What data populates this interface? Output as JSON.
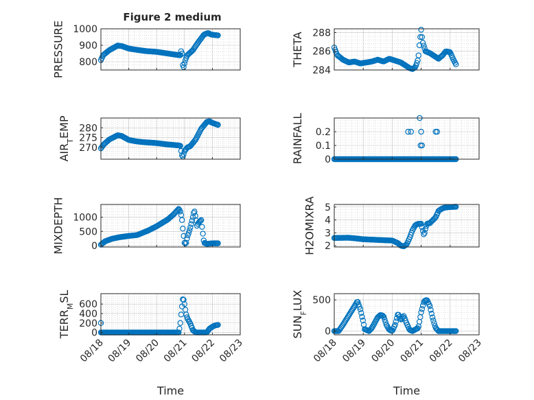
{
  "title": "Figure 2 medium",
  "colors": {
    "marker": "#0072BD",
    "axis": "#262626",
    "grid": "#bfbfbf",
    "background": "#ffffff"
  },
  "chart_data": [
    {
      "type": "scatter",
      "ylabel": "PRESSURE",
      "title": "Figure 2 medium",
      "ylim": [
        750,
        1000
      ],
      "yticks": [
        800,
        900,
        1000
      ],
      "xlim": [
        0,
        5
      ],
      "xticks": [
        0,
        1,
        2,
        3,
        4,
        5
      ],
      "xticklabels": [
        "",
        "",
        "",
        "",
        "",
        ""
      ],
      "xlabel": "",
      "grid": true,
      "series": [
        {
          "type": "piecewise",
          "knots": [
            [
              0.0,
              810
            ],
            [
              0.08,
              840
            ],
            [
              0.3,
              870
            ],
            [
              0.6,
              898
            ],
            [
              0.75,
              895
            ],
            [
              1.0,
              880
            ],
            [
              1.3,
              872
            ],
            [
              1.6,
              865
            ],
            [
              2.0,
              860
            ],
            [
              2.4,
              850
            ],
            [
              2.8,
              840
            ],
            [
              2.85,
              840
            ],
            [
              2.9,
              880
            ],
            [
              2.93,
              790
            ],
            [
              2.96,
              760
            ],
            [
              3.0,
              790
            ],
            [
              3.05,
              820
            ],
            [
              3.1,
              840
            ],
            [
              3.3,
              870
            ],
            [
              3.5,
              920
            ],
            [
              3.7,
              965
            ],
            [
              3.85,
              975
            ],
            [
              3.95,
              965
            ],
            [
              4.2,
              960
            ]
          ]
        }
      ]
    },
    {
      "type": "scatter",
      "ylabel": "THETA",
      "ylim": [
        284,
        288.4
      ],
      "yticks": [
        284,
        286,
        288
      ],
      "xlim": [
        0,
        5
      ],
      "xticks": [
        0,
        1,
        2,
        3,
        4,
        5
      ],
      "xticklabels": [
        "",
        "",
        "",
        "",
        "",
        ""
      ],
      "xlabel": "",
      "grid": true,
      "series": [
        {
          "type": "piecewise",
          "knots": [
            [
              0.0,
              286.4
            ],
            [
              0.1,
              285.6
            ],
            [
              0.3,
              285.1
            ],
            [
              0.5,
              284.8
            ],
            [
              0.7,
              284.9
            ],
            [
              0.9,
              284.7
            ],
            [
              1.1,
              284.8
            ],
            [
              1.3,
              284.9
            ],
            [
              1.5,
              285.1
            ],
            [
              1.7,
              284.9
            ],
            [
              1.9,
              285.2
            ],
            [
              2.1,
              285.0
            ],
            [
              2.3,
              284.8
            ],
            [
              2.5,
              284.4
            ],
            [
              2.6,
              284.2
            ],
            [
              2.7,
              284.1
            ],
            [
              2.8,
              284.3
            ],
            [
              2.9,
              285.2
            ],
            [
              2.95,
              287.0
            ],
            [
              3.0,
              288.3
            ],
            [
              3.05,
              287.0
            ],
            [
              3.15,
              286.0
            ],
            [
              3.3,
              285.8
            ],
            [
              3.5,
              285.4
            ],
            [
              3.6,
              285.2
            ],
            [
              3.75,
              285.6
            ],
            [
              3.85,
              286.0
            ],
            [
              4.0,
              285.9
            ],
            [
              4.1,
              285.2
            ],
            [
              4.2,
              284.6
            ]
          ]
        }
      ]
    },
    {
      "type": "scatter",
      "ylabel": "AIR_TEMP",
      "ylim": [
        264,
        285
      ],
      "yticks": [
        270,
        275,
        280
      ],
      "xlim": [
        0,
        5
      ],
      "xticks": [
        0,
        1,
        2,
        3,
        4,
        5
      ],
      "xticklabels": [
        "",
        "",
        "",
        "",
        "",
        ""
      ],
      "xlabel": "",
      "grid": true,
      "series": [
        {
          "type": "piecewise",
          "knots": [
            [
              0.0,
              269.5
            ],
            [
              0.1,
              271.5
            ],
            [
              0.3,
              274
            ],
            [
              0.6,
              276.2
            ],
            [
              0.75,
              275.8
            ],
            [
              1.0,
              273.8
            ],
            [
              1.3,
              273.0
            ],
            [
              1.6,
              272.6
            ],
            [
              2.0,
              272.2
            ],
            [
              2.4,
              271.5
            ],
            [
              2.8,
              271.0
            ],
            [
              2.85,
              270.8
            ],
            [
              2.9,
              266.5
            ],
            [
              2.93,
              265.0
            ],
            [
              2.96,
              266.0
            ],
            [
              3.0,
              268.0
            ],
            [
              3.1,
              270.0
            ],
            [
              3.2,
              270.5
            ],
            [
              3.4,
              274
            ],
            [
              3.6,
              279.5
            ],
            [
              3.8,
              283.0
            ],
            [
              3.9,
              283.3
            ],
            [
              4.0,
              282.5
            ],
            [
              4.2,
              281.5
            ]
          ]
        }
      ]
    },
    {
      "type": "scatter",
      "ylabel": "RAINFALL",
      "ylim": [
        0,
        0.3
      ],
      "yticks": [
        0,
        0.1,
        0.2
      ],
      "xlim": [
        0,
        5
      ],
      "xticks": [
        0,
        1,
        2,
        3,
        4,
        5
      ],
      "xticklabels": [
        "",
        "",
        "",
        "",
        "",
        ""
      ],
      "xlabel": "",
      "grid": true,
      "series": [
        {
          "type": "piecewise",
          "knots": [
            [
              0.0,
              0
            ],
            [
              4.2,
              0
            ]
          ]
        },
        {
          "type": "points",
          "points": [
            [
              2.55,
              0.2
            ],
            [
              2.65,
              0.2
            ],
            [
              2.95,
              0.3
            ],
            [
              3.0,
              0.2
            ],
            [
              2.98,
              0.1
            ],
            [
              3.03,
              0.1
            ],
            [
              3.5,
              0.2
            ],
            [
              3.55,
              0.2
            ]
          ]
        }
      ]
    },
    {
      "type": "scatter",
      "ylabel": "MIXDEPTH",
      "ylim": [
        -50,
        1450
      ],
      "yticks": [
        0,
        500,
        1000
      ],
      "xlim": [
        0,
        5
      ],
      "xticks": [
        0,
        1,
        2,
        3,
        4,
        5
      ],
      "xticklabels": [
        "",
        "",
        "",
        "",
        "",
        ""
      ],
      "xlabel": "",
      "grid": true,
      "series": [
        {
          "type": "piecewise",
          "knots": [
            [
              0.0,
              30
            ],
            [
              0.15,
              150
            ],
            [
              0.4,
              240
            ],
            [
              0.7,
              300
            ],
            [
              1.0,
              340
            ],
            [
              1.3,
              370
            ],
            [
              1.5,
              450
            ],
            [
              1.7,
              530
            ],
            [
              2.0,
              680
            ],
            [
              2.2,
              800
            ],
            [
              2.4,
              920
            ],
            [
              2.6,
              1090
            ],
            [
              2.75,
              1250
            ],
            [
              2.8,
              1300
            ],
            [
              2.85,
              1200
            ],
            [
              2.9,
              1000
            ],
            [
              2.95,
              500
            ],
            [
              3.0,
              100
            ],
            [
              3.05,
              50
            ],
            [
              3.1,
              300
            ],
            [
              3.2,
              600
            ],
            [
              3.3,
              1000
            ],
            [
              3.35,
              1250
            ],
            [
              3.4,
              1000
            ],
            [
              3.45,
              700
            ],
            [
              3.5,
              800
            ],
            [
              3.6,
              900
            ],
            [
              3.7,
              100
            ],
            [
              3.8,
              60
            ],
            [
              4.0,
              80
            ],
            [
              4.2,
              80
            ]
          ]
        }
      ]
    },
    {
      "type": "scatter",
      "ylabel": "H2OMIXRA",
      "ylim": [
        1.9,
        5.2
      ],
      "yticks": [
        2,
        3,
        4,
        5
      ],
      "xlim": [
        0,
        5
      ],
      "xticks": [
        0,
        1,
        2,
        3,
        4,
        5
      ],
      "xticklabels": [
        "",
        "",
        "",
        "",
        "",
        ""
      ],
      "xlabel": "",
      "grid": true,
      "series": [
        {
          "type": "piecewise",
          "knots": [
            [
              0.0,
              2.6
            ],
            [
              0.5,
              2.62
            ],
            [
              0.8,
              2.55
            ],
            [
              1.0,
              2.5
            ],
            [
              1.5,
              2.45
            ],
            [
              2.0,
              2.4
            ],
            [
              2.2,
              2.2
            ],
            [
              2.3,
              2.0
            ],
            [
              2.4,
              1.95
            ],
            [
              2.5,
              2.1
            ],
            [
              2.6,
              2.6
            ],
            [
              2.7,
              3.2
            ],
            [
              2.8,
              3.6
            ],
            [
              2.9,
              3.7
            ],
            [
              3.0,
              3.7
            ],
            [
              3.1,
              2.8
            ],
            [
              3.15,
              3.3
            ],
            [
              3.2,
              3.7
            ],
            [
              3.3,
              3.75
            ],
            [
              3.5,
              4.2
            ],
            [
              3.6,
              4.7
            ],
            [
              3.7,
              4.85
            ],
            [
              3.8,
              4.95
            ],
            [
              4.0,
              5.0
            ],
            [
              4.2,
              5.02
            ]
          ]
        }
      ]
    },
    {
      "type": "scatter",
      "ylabel": "TERR_MSL",
      "ylim": [
        -50,
        820
      ],
      "yticks": [
        0,
        200,
        400,
        600
      ],
      "xlim": [
        0,
        5
      ],
      "xticks": [
        0,
        1,
        2,
        3,
        4,
        5
      ],
      "xticklabels": [
        "08/18",
        "08/19",
        "08/20",
        "08/21",
        "08/22",
        "08/23"
      ],
      "xlabel": "Time",
      "grid": true,
      "series": [
        {
          "type": "piecewise",
          "knots": [
            [
              0.0,
              0
            ],
            [
              2.8,
              0
            ],
            [
              2.85,
              200
            ],
            [
              2.9,
              500
            ],
            [
              2.95,
              750
            ],
            [
              3.0,
              600
            ],
            [
              3.05,
              400
            ],
            [
              3.1,
              300
            ],
            [
              3.2,
              200
            ],
            [
              3.3,
              50
            ],
            [
              3.4,
              0
            ],
            [
              3.8,
              0
            ],
            [
              3.9,
              80
            ],
            [
              4.0,
              120
            ],
            [
              4.1,
              150
            ],
            [
              4.2,
              160
            ]
          ]
        },
        {
          "type": "points",
          "points": [
            [
              0.0,
              200
            ]
          ]
        }
      ]
    },
    {
      "type": "scatter",
      "ylabel": "SUN_FLUX",
      "ylim": [
        -60,
        600
      ],
      "yticks": [
        0,
        500
      ],
      "xlim": [
        0,
        5
      ],
      "xticks": [
        0,
        1,
        2,
        3,
        4,
        5
      ],
      "xticklabels": [
        "08/18",
        "08/19",
        "08/20",
        "08/21",
        "08/22",
        "08/23"
      ],
      "xlabel": "Time",
      "grid": true,
      "series": [
        {
          "type": "piecewise",
          "knots": [
            [
              0.0,
              0
            ],
            [
              0.15,
              0
            ],
            [
              0.3,
              100
            ],
            [
              0.5,
              250
            ],
            [
              0.7,
              400
            ],
            [
              0.8,
              480
            ],
            [
              0.9,
              350
            ],
            [
              1.0,
              150
            ],
            [
              1.05,
              30
            ],
            [
              1.2,
              0
            ],
            [
              1.3,
              50
            ],
            [
              1.5,
              220
            ],
            [
              1.6,
              260
            ],
            [
              1.7,
              240
            ],
            [
              1.8,
              100
            ],
            [
              1.9,
              20
            ],
            [
              2.0,
              0
            ],
            [
              2.1,
              100
            ],
            [
              2.2,
              280
            ],
            [
              2.3,
              180
            ],
            [
              2.4,
              240
            ],
            [
              2.5,
              120
            ],
            [
              2.6,
              20
            ],
            [
              2.7,
              0
            ],
            [
              2.9,
              50
            ],
            [
              3.0,
              300
            ],
            [
              3.1,
              480
            ],
            [
              3.2,
              500
            ],
            [
              3.3,
              400
            ],
            [
              3.4,
              200
            ],
            [
              3.5,
              50
            ],
            [
              3.6,
              0
            ],
            [
              4.2,
              0
            ]
          ]
        }
      ]
    }
  ]
}
